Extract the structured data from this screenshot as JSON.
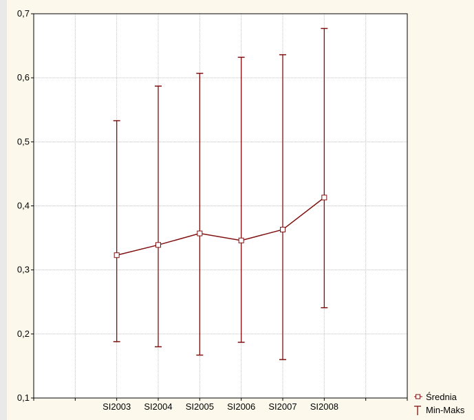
{
  "chart_data": {
    "type": "line",
    "categories": [
      "SI2003",
      "SI2004",
      "SI2005",
      "SI2006",
      "SI2007",
      "SI2008"
    ],
    "series": [
      {
        "name": "Średnia",
        "values": [
          0.323,
          0.339,
          0.357,
          0.346,
          0.363,
          0.413
        ]
      },
      {
        "name": "Min-Maks",
        "min": [
          0.188,
          0.18,
          0.167,
          0.187,
          0.16,
          0.241
        ],
        "max": [
          0.533,
          0.587,
          0.607,
          0.632,
          0.636,
          0.677
        ]
      }
    ],
    "yticks": [
      "0,1",
      "0,2",
      "0,3",
      "0,4",
      "0,5",
      "0,6",
      "0,7"
    ],
    "ylim": [
      0.1,
      0.7
    ],
    "x_slots": 9,
    "first_category_slot": 2,
    "grid": true,
    "legend_position": "bottom-right",
    "colors": {
      "series": "#7f0f0f",
      "grid": "#bdbdbd",
      "frame": "#000000",
      "plot_bg": "#ffffff",
      "page_bg": "#fcf9ec"
    }
  }
}
